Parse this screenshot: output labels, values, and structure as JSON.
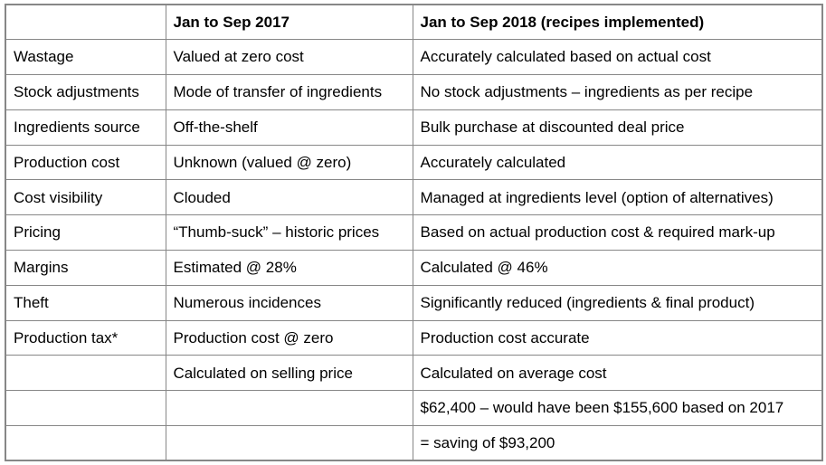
{
  "table": {
    "header": [
      "",
      "Jan to Sep 2017",
      "Jan to Sep 2018 (recipes implemented)"
    ],
    "rows": [
      [
        "Wastage",
        "Valued at zero cost",
        "Accurately calculated based on actual cost"
      ],
      [
        "Stock adjustments",
        "Mode of transfer of ingredients",
        "No stock adjustments – ingredients as per recipe"
      ],
      [
        "Ingredients source",
        "Off-the-shelf",
        "Bulk purchase at discounted deal price"
      ],
      [
        "Production cost",
        "Unknown (valued @ zero)",
        "Accurately calculated"
      ],
      [
        "Cost visibility",
        "Clouded",
        "Managed at ingredients level (option of alternatives)"
      ],
      [
        "Pricing",
        "“Thumb-suck” – historic prices",
        "Based on actual production cost & required mark-up"
      ],
      [
        "Margins",
        "Estimated @ 28%",
        "Calculated @ 46%"
      ],
      [
        "Theft",
        "Numerous incidences",
        "Significantly reduced (ingredients & final product)"
      ],
      [
        "Production tax*",
        "Production cost @ zero",
        "Production cost accurate"
      ],
      [
        "",
        "Calculated on selling price",
        "Calculated on average cost"
      ],
      [
        "",
        "",
        "$62,400 – would have been $155,600 based on 2017"
      ],
      [
        "",
        "",
        "= saving of $93,200"
      ]
    ]
  },
  "colors": {
    "border": "#878787",
    "text": "#000000",
    "background": "#ffffff"
  }
}
